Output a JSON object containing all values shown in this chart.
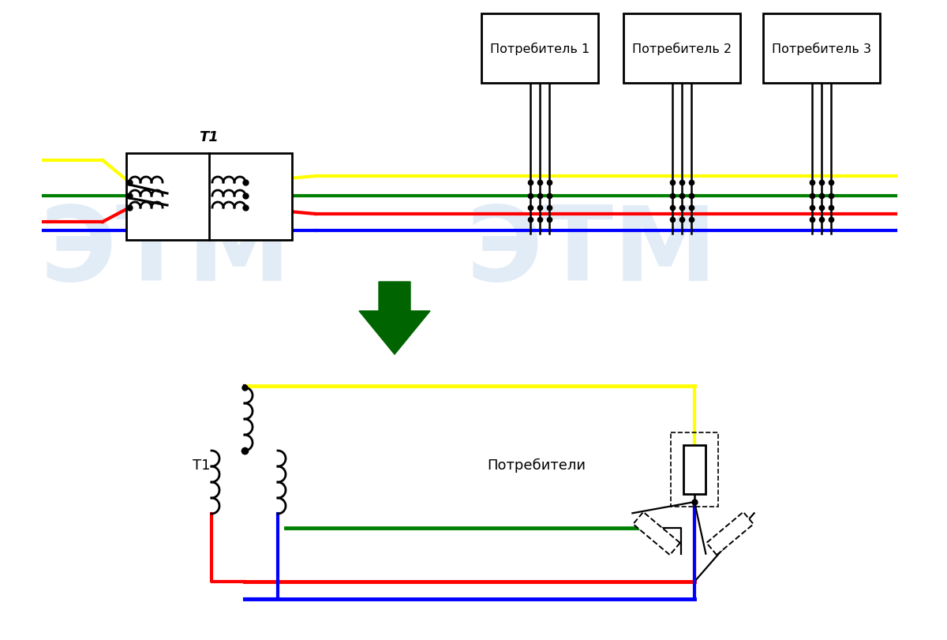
{
  "bg_color": "#ffffff",
  "watermark_color": "#cfe0f0",
  "yellow": "#ffff00",
  "green_wire": "#008000",
  "red_wire": "#ff0000",
  "blue_wire": "#0000ff",
  "black": "#000000",
  "arrow_fill": "#006400",
  "T1_label": "T1",
  "consumers_label": "Потребители",
  "consumer_labels": [
    "Потребитель 1",
    "Потребитель 2",
    "Потребитель 3"
  ],
  "lw_wire": 3.0,
  "lw_coil": 2.0
}
